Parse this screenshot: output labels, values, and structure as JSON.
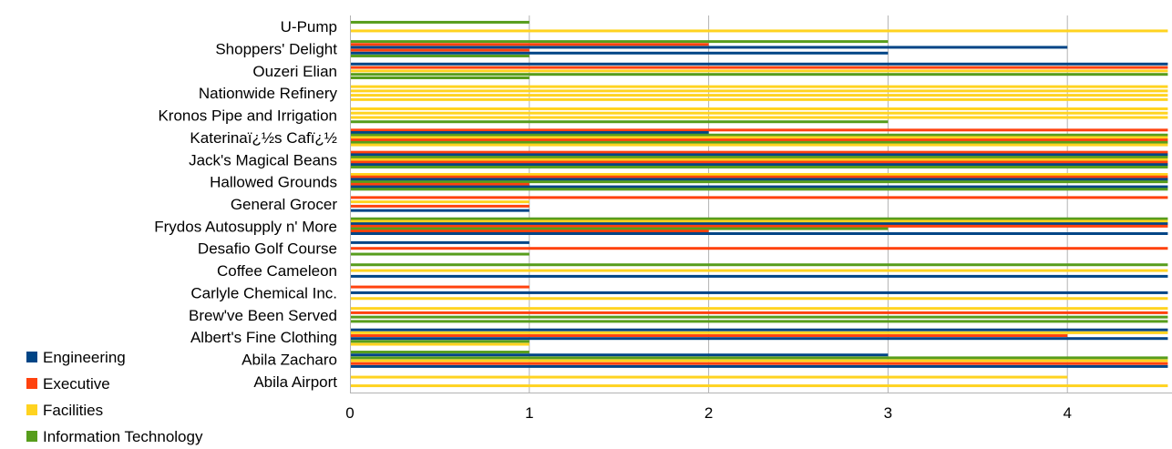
{
  "chart_data": {
    "type": "bar",
    "orientation": "horizontal",
    "categories": [
      "U-Pump",
      "Shoppers' Delight",
      "Ouzeri Elian",
      "Nationwide Refinery",
      "Kronos Pipe and Irrigation",
      "Katerinaï¿½s Cafï¿½",
      "Jack's Magical Beans",
      "Hallowed Grounds",
      "General Grocer",
      "Frydos Autosupply n' More",
      "Desafio Golf Course",
      "Coffee Cameleon",
      "Carlyle Chemical Inc.",
      "Brew've Been Served",
      "Albert's Fine Clothing",
      "Abila Zacharo",
      "Abila Airport"
    ],
    "groups": [
      [
        {
          "s": 3,
          "v": 1
        },
        {
          "s": 2,
          "v": 5
        }
      ],
      [
        {
          "s": 3,
          "v": 3
        },
        {
          "s": 1,
          "v": 2
        },
        {
          "s": 0,
          "v": 4
        },
        {
          "s": 1,
          "v": 1
        },
        {
          "s": 0,
          "v": 3
        },
        {
          "s": 3,
          "v": 1
        }
      ],
      [
        {
          "s": 0,
          "v": 5
        },
        {
          "s": 1,
          "v": 5
        },
        {
          "s": 2,
          "v": 5
        },
        {
          "s": 3,
          "v": 5
        },
        {
          "s": 3,
          "v": 1
        }
      ],
      [
        {
          "s": 2,
          "v": 5
        },
        {
          "s": 2,
          "v": 5
        },
        {
          "s": 2,
          "v": 5
        },
        {
          "s": 2,
          "v": 5
        }
      ],
      [
        {
          "s": 2,
          "v": 5
        },
        {
          "s": 2,
          "v": 5
        },
        {
          "s": 2,
          "v": 5
        },
        {
          "s": 3,
          "v": 3
        }
      ],
      [
        {
          "s": 1,
          "v": 5
        },
        {
          "s": 0,
          "v": 2
        },
        {
          "s": 3,
          "v": 5
        },
        {
          "s": 2,
          "v": 5
        },
        {
          "s": 1,
          "v": 5
        },
        {
          "s": 3,
          "v": 5
        },
        {
          "s": 2,
          "v": 5
        }
      ],
      [
        {
          "s": 1,
          "v": 5
        },
        {
          "s": 0,
          "v": 5
        },
        {
          "s": 3,
          "v": 5
        },
        {
          "s": 2,
          "v": 5
        },
        {
          "s": 1,
          "v": 5
        },
        {
          "s": 0,
          "v": 5
        },
        {
          "s": 3,
          "v": 5
        }
      ],
      [
        {
          "s": 2,
          "v": 5
        },
        {
          "s": 1,
          "v": 5
        },
        {
          "s": 0,
          "v": 5
        },
        {
          "s": 3,
          "v": 5
        },
        {
          "s": 1,
          "v": 1
        },
        {
          "s": 0,
          "v": 5
        },
        {
          "s": 3,
          "v": 5
        }
      ],
      [
        {
          "s": 1,
          "v": 5
        },
        {
          "s": 2,
          "v": 1
        },
        {
          "s": 1,
          "v": 1
        },
        {
          "s": 0,
          "v": 1
        }
      ],
      [
        {
          "s": 3,
          "v": 5
        },
        {
          "s": 2,
          "v": 5
        },
        {
          "s": 0,
          "v": 5
        },
        {
          "s": 1,
          "v": 5
        },
        {
          "s": 3,
          "v": 3
        },
        {
          "s": 1,
          "v": 2
        },
        {
          "s": 0,
          "v": 5
        }
      ],
      [
        {
          "s": 0,
          "v": 1
        },
        {
          "s": 1,
          "v": 5
        },
        {
          "s": 3,
          "v": 1
        }
      ],
      [
        {
          "s": 3,
          "v": 5
        },
        {
          "s": 2,
          "v": 5
        },
        {
          "s": 0,
          "v": 5
        }
      ],
      [
        {
          "s": 1,
          "v": 1
        },
        {
          "s": 0,
          "v": 5
        },
        {
          "s": 2,
          "v": 5
        }
      ],
      [
        {
          "s": 2,
          "v": 5
        },
        {
          "s": 1,
          "v": 5
        },
        {
          "s": 3,
          "v": 5
        },
        {
          "s": 3,
          "v": 5
        }
      ],
      [
        {
          "s": 0,
          "v": 5
        },
        {
          "s": 2,
          "v": 5
        },
        {
          "s": 1,
          "v": 4
        },
        {
          "s": 0,
          "v": 5
        },
        {
          "s": 3,
          "v": 1
        },
        {
          "s": 2,
          "v": 1
        }
      ],
      [
        {
          "s": 3,
          "v": 1
        },
        {
          "s": 0,
          "v": 3
        },
        {
          "s": 3,
          "v": 5
        },
        {
          "s": 2,
          "v": 5
        },
        {
          "s": 1,
          "v": 5
        },
        {
          "s": 0,
          "v": 5
        }
      ],
      [
        {
          "s": 2,
          "v": 4
        },
        {
          "s": 2,
          "v": 5
        }
      ]
    ],
    "series": [
      {
        "name": "Engineering",
        "color": "#004586"
      },
      {
        "name": "Executive",
        "color": "#ff420e"
      },
      {
        "name": "Facilities",
        "color": "#ffd320"
      },
      {
        "name": "Information Technology",
        "color": "#579d1c"
      }
    ],
    "x_ticks": [
      "0",
      "1",
      "2",
      "3",
      "4"
    ],
    "xlim": [
      0,
      4.56
    ],
    "grid": true,
    "legend_position": "bottom-left"
  }
}
